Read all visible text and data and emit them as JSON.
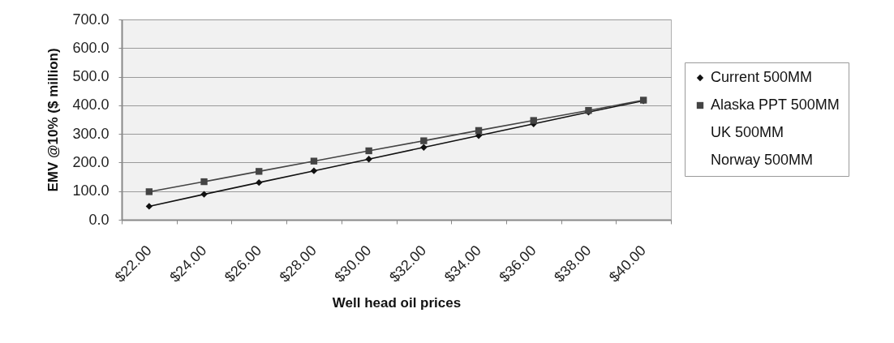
{
  "chart_data": {
    "type": "line",
    "xlabel": "Well head oil prices",
    "ylabel": "EMV @10% ($ million)",
    "categories": [
      "$22.00",
      "$24.00",
      "$26.00",
      "$28.00",
      "$30.00",
      "$32.00",
      "$34.00",
      "$36.00",
      "$38.00",
      "$40.00"
    ],
    "series": [
      {
        "name": "Current 500MM",
        "color": "#111111",
        "marker": "diamond",
        "values": [
          47,
          89,
          130,
          171,
          212,
          253,
          294,
          335,
          376,
          416
        ]
      },
      {
        "name": "Alaska PPT 500MM",
        "color": "#444444",
        "marker": "square",
        "values": [
          98,
          133,
          169,
          205,
          241,
          276,
          312,
          347,
          382,
          418
        ]
      },
      {
        "name": "UK 500MM",
        "marker": "none",
        "values": [
          null,
          null,
          null,
          null,
          null,
          null,
          null,
          null,
          null,
          null
        ]
      },
      {
        "name": "Norway 500MM",
        "marker": "none",
        "values": [
          null,
          null,
          null,
          null,
          null,
          null,
          null,
          null,
          null,
          null
        ]
      }
    ],
    "ylim": [
      0,
      700
    ],
    "yticks": [
      {
        "value": 0,
        "label": "0.0"
      },
      {
        "value": 100,
        "label": "100.0"
      },
      {
        "value": 200,
        "label": "200.0"
      },
      {
        "value": 300,
        "label": "300.0"
      },
      {
        "value": 400,
        "label": "400.0"
      },
      {
        "value": 500,
        "label": "500.0"
      },
      {
        "value": 600,
        "label": "600.0"
      },
      {
        "value": 700,
        "label": "700.0"
      }
    ],
    "grid": "y",
    "legend": "right",
    "line_style": "solid"
  }
}
